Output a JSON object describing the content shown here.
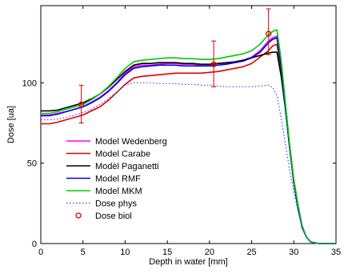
{
  "chart_data": {
    "type": "line",
    "xlabel": "Depth in water [mm]",
    "ylabel": "Dose [ua]",
    "xlim": [
      0,
      35
    ],
    "ylim": [
      0,
      148
    ],
    "x_ticks": [
      0,
      5,
      10,
      15,
      20,
      25,
      30,
      35
    ],
    "y_ticks": [
      0,
      50,
      100
    ],
    "grid": false,
    "legend_position": "lower-left",
    "series": [
      {
        "name": "Model Wedenberg",
        "color": "#ff00ff",
        "style": "solid",
        "x": [
          0,
          1,
          2,
          3,
          4,
          5,
          6,
          7,
          8,
          9,
          10,
          11,
          12,
          13,
          14,
          15,
          16,
          17,
          18,
          19,
          20,
          21,
          22,
          23,
          24,
          25,
          26,
          27,
          27.5,
          28,
          28.5,
          29,
          29.5,
          30,
          30.5,
          31,
          31.5,
          32,
          33,
          34,
          35
        ],
        "y": [
          80,
          80,
          81,
          82,
          83.5,
          85,
          88,
          91,
          95,
          100,
          106,
          110,
          111,
          111,
          111.5,
          112,
          112,
          111.5,
          111.5,
          111,
          111,
          112,
          112,
          113,
          114,
          116,
          120,
          126,
          128,
          129,
          110,
          85,
          60,
          38,
          22,
          10,
          4,
          1,
          0,
          0,
          0
        ]
      },
      {
        "name": "Model Carabe",
        "color": "#e00000",
        "style": "solid",
        "x": [
          0,
          1,
          2,
          3,
          4,
          5,
          6,
          7,
          8,
          9,
          10,
          11,
          12,
          13,
          14,
          15,
          16,
          17,
          18,
          19,
          20,
          21,
          22,
          23,
          24,
          25,
          26,
          27,
          27.5,
          28,
          28.5,
          29,
          29.5,
          30,
          30.5,
          31,
          31.5,
          32,
          33,
          34,
          35
        ],
        "y": [
          74.5,
          74.5,
          75.5,
          77,
          78.5,
          80,
          82.5,
          85,
          89,
          94,
          99,
          103,
          104,
          104.5,
          105,
          105.5,
          106,
          106,
          106,
          106,
          106.5,
          107,
          108,
          109,
          110,
          112,
          116,
          120,
          123,
          124,
          108,
          85,
          60,
          38,
          22,
          10,
          4,
          1,
          0,
          0,
          0
        ]
      },
      {
        "name": "Modèl Paganetti",
        "color": "#000000",
        "style": "solid",
        "x": [
          0,
          1,
          2,
          3,
          4,
          5,
          6,
          7,
          8,
          9,
          10,
          11,
          12,
          13,
          14,
          15,
          16,
          17,
          18,
          19,
          20,
          21,
          22,
          23,
          24,
          25,
          26,
          27,
          27.5,
          28,
          28.5,
          29,
          29.5,
          30,
          30.5,
          31,
          31.5,
          32,
          33,
          34,
          35
        ],
        "y": [
          82.5,
          82.5,
          83,
          84.5,
          86,
          87.5,
          90,
          93,
          97,
          102,
          107,
          111,
          112,
          112,
          112.5,
          112.5,
          112.5,
          112,
          112,
          111.5,
          111.5,
          112,
          112.5,
          113,
          114,
          115.5,
          117,
          118.5,
          119,
          119,
          104,
          84,
          60,
          38,
          22,
          10,
          4,
          1,
          0,
          0,
          0
        ]
      },
      {
        "name": "Model RMF",
        "color": "#0000e0",
        "style": "solid",
        "x": [
          0,
          1,
          2,
          3,
          4,
          5,
          6,
          7,
          8,
          9,
          10,
          11,
          12,
          13,
          14,
          15,
          16,
          17,
          18,
          19,
          20,
          21,
          22,
          23,
          24,
          25,
          26,
          27,
          27.5,
          28,
          28.5,
          29,
          29.5,
          30,
          30.5,
          31,
          31.5,
          32,
          33,
          34,
          35
        ],
        "y": [
          79.5,
          79.5,
          80.5,
          82,
          83.5,
          85,
          87.5,
          90.5,
          94.5,
          99.5,
          105,
          109,
          110,
          110.5,
          111,
          111,
          111,
          110.5,
          110.5,
          110.5,
          110.5,
          111,
          111.5,
          112.5,
          113.5,
          115.5,
          119,
          125,
          127,
          128,
          110,
          85,
          60,
          38,
          22,
          10,
          4,
          1,
          0,
          0,
          0
        ]
      },
      {
        "name": "Model MKM",
        "color": "#00cc00",
        "style": "solid",
        "x": [
          0,
          1,
          2,
          3,
          4,
          5,
          6,
          7,
          8,
          9,
          10,
          11,
          12,
          13,
          14,
          15,
          16,
          17,
          18,
          19,
          20,
          21,
          22,
          23,
          24,
          25,
          26,
          27,
          27.5,
          28,
          28.5,
          29,
          29.5,
          30,
          30.5,
          31,
          31.5,
          32,
          33,
          34,
          35
        ],
        "y": [
          81,
          81,
          82,
          83.5,
          85,
          86.5,
          89.5,
          93,
          97.5,
          103,
          109,
          113,
          114,
          114.5,
          115,
          115.5,
          115.5,
          115,
          115,
          114.5,
          114.5,
          115,
          116,
          117,
          118,
          120,
          124,
          130,
          132,
          133,
          114,
          88,
          62,
          40,
          24,
          11,
          4,
          1,
          0,
          0,
          0
        ]
      },
      {
        "name": "Dose phys",
        "color": "#4040ff",
        "style": "dotted",
        "x": [
          0,
          1,
          2,
          3,
          4,
          5,
          6,
          7,
          8,
          9,
          10,
          11,
          12,
          13,
          14,
          15,
          16,
          17,
          18,
          19,
          20,
          21,
          22,
          23,
          24,
          25,
          26,
          27,
          27.5,
          28,
          28.5,
          29,
          29.5,
          30,
          30.5,
          31,
          31.5,
          32,
          33,
          34,
          35
        ],
        "y": [
          77,
          77,
          77.5,
          78.5,
          80,
          81.5,
          83.5,
          86.5,
          90,
          94,
          98.5,
          100,
          100,
          100,
          99.5,
          99.5,
          99.5,
          99,
          99,
          98.5,
          98.5,
          98,
          97.5,
          97.5,
          97.5,
          97.5,
          98,
          98.5,
          97,
          92,
          78,
          62,
          46,
          32,
          20,
          10,
          4,
          1,
          0,
          0,
          0
        ]
      }
    ],
    "markers": {
      "name": "Dose biol",
      "color": "#e00000",
      "style": "circle",
      "x": [
        4.8,
        20.5,
        27
      ],
      "y": [
        86.5,
        111.5,
        130.5
      ],
      "err_low": [
        75,
        97.5,
        117.5
      ],
      "err_high": [
        98.5,
        126,
        146
      ]
    }
  }
}
